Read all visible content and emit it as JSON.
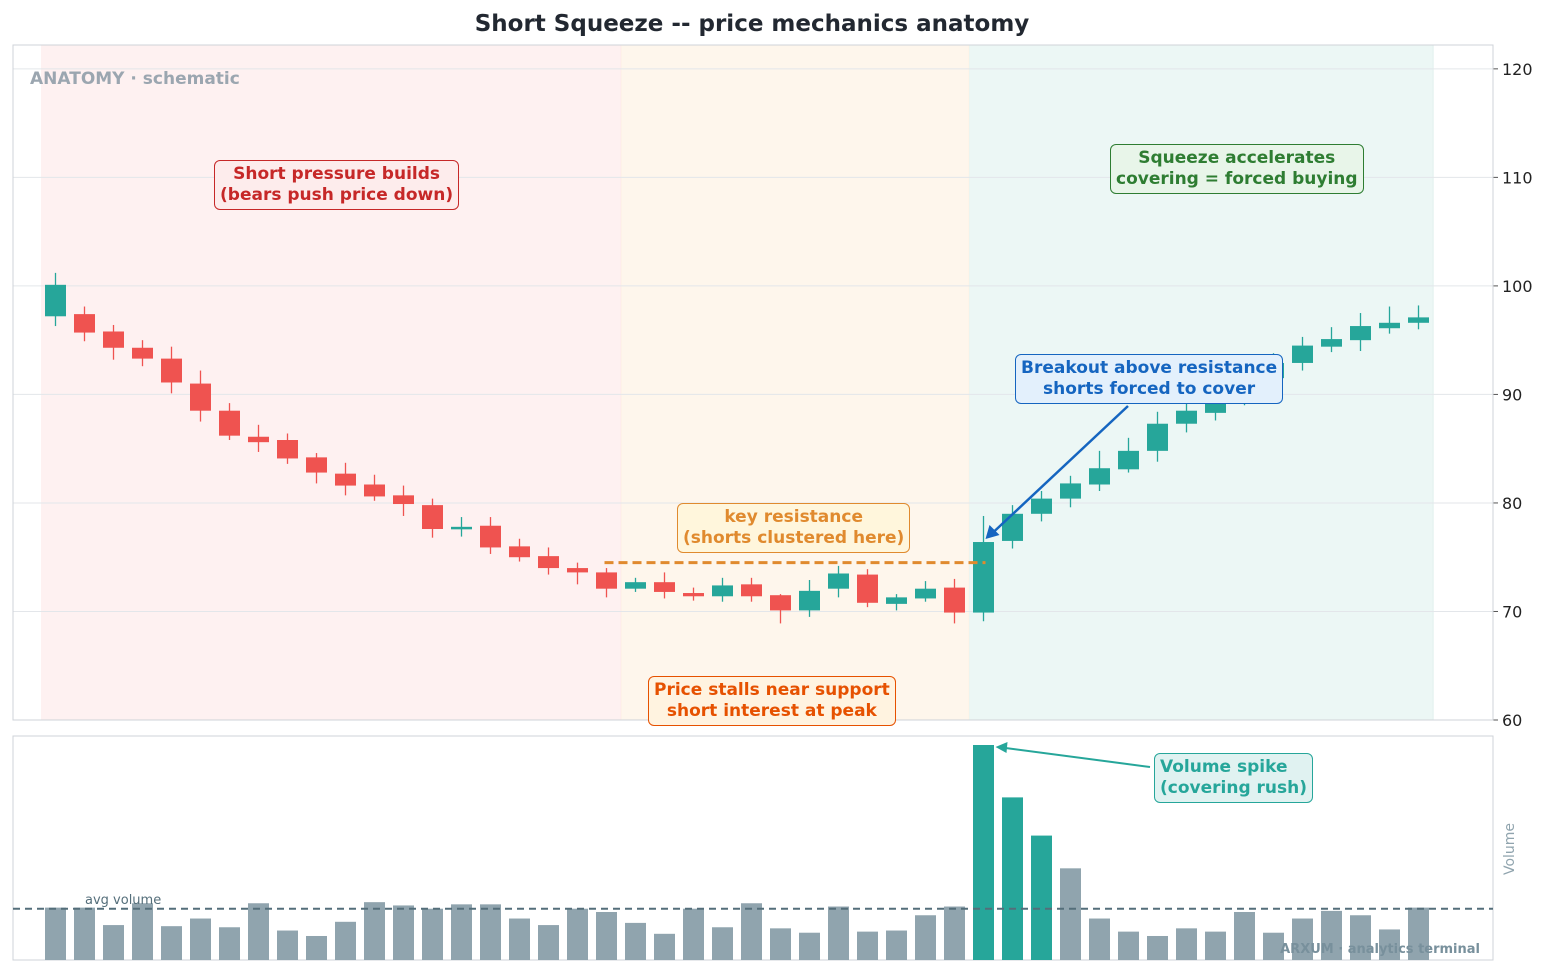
{
  "chart_data": [
    {
      "type": "candlestick",
      "title": "Short Squeeze -- price mechanics anatomy",
      "watermark_top": "ANATOMY · schematic",
      "y_axis": {
        "ylim": [
          60,
          121
        ],
        "ticks": [
          60,
          70,
          80,
          90,
          100,
          110,
          120
        ],
        "position": "right"
      },
      "grid": true,
      "phases": [
        {
          "name": "short-pressure",
          "start_index": 0,
          "end_index": 19,
          "color": "#fdecec"
        },
        {
          "name": "stall",
          "start_index": 20,
          "end_index": 31,
          "color": "#fdf3e6"
        },
        {
          "name": "squeeze",
          "start_index": 32,
          "end_index": 47,
          "color": "#e6f4f1"
        }
      ],
      "candles": [
        {
          "open": 97.2,
          "high": 101.2,
          "low": 96.3,
          "close": 100.1
        },
        {
          "open": 97.4,
          "high": 98.1,
          "low": 94.9,
          "close": 95.7
        },
        {
          "open": 95.8,
          "high": 96.4,
          "low": 93.2,
          "close": 94.3
        },
        {
          "open": 94.3,
          "high": 95.0,
          "low": 92.6,
          "close": 93.3
        },
        {
          "open": 93.3,
          "high": 94.4,
          "low": 90.1,
          "close": 91.1
        },
        {
          "open": 91.0,
          "high": 92.2,
          "low": 87.5,
          "close": 88.5
        },
        {
          "open": 88.5,
          "high": 89.2,
          "low": 85.8,
          "close": 86.2
        },
        {
          "open": 86.1,
          "high": 87.2,
          "low": 84.7,
          "close": 85.6
        },
        {
          "open": 85.8,
          "high": 86.4,
          "low": 83.6,
          "close": 84.1
        },
        {
          "open": 84.2,
          "high": 84.6,
          "low": 81.8,
          "close": 82.8
        },
        {
          "open": 82.7,
          "high": 83.7,
          "low": 80.7,
          "close": 81.6
        },
        {
          "open": 81.7,
          "high": 82.6,
          "low": 80.2,
          "close": 80.6
        },
        {
          "open": 80.7,
          "high": 81.6,
          "low": 78.8,
          "close": 79.9
        },
        {
          "open": 79.8,
          "high": 80.4,
          "low": 76.8,
          "close": 77.6
        },
        {
          "open": 77.6,
          "high": 78.7,
          "low": 76.9,
          "close": 77.8
        },
        {
          "open": 77.9,
          "high": 78.7,
          "low": 75.3,
          "close": 75.9
        },
        {
          "open": 76.0,
          "high": 76.7,
          "low": 74.6,
          "close": 75.0
        },
        {
          "open": 75.1,
          "high": 75.9,
          "low": 73.4,
          "close": 74.0
        },
        {
          "open": 74.0,
          "high": 74.5,
          "low": 72.5,
          "close": 73.6
        },
        {
          "open": 73.6,
          "high": 74.0,
          "low": 71.3,
          "close": 72.1
        },
        {
          "open": 72.1,
          "high": 73.1,
          "low": 71.8,
          "close": 72.7
        },
        {
          "open": 72.7,
          "high": 73.6,
          "low": 71.2,
          "close": 71.8
        },
        {
          "open": 71.7,
          "high": 72.2,
          "low": 71.0,
          "close": 71.4
        },
        {
          "open": 71.4,
          "high": 73.1,
          "low": 70.9,
          "close": 72.4
        },
        {
          "open": 72.5,
          "high": 73.1,
          "low": 70.9,
          "close": 71.4
        },
        {
          "open": 71.5,
          "high": 71.6,
          "low": 68.9,
          "close": 70.1
        },
        {
          "open": 70.1,
          "high": 72.9,
          "low": 69.5,
          "close": 71.9
        },
        {
          "open": 72.1,
          "high": 74.2,
          "low": 71.3,
          "close": 73.5
        },
        {
          "open": 73.4,
          "high": 73.9,
          "low": 70.4,
          "close": 70.8
        },
        {
          "open": 70.7,
          "high": 71.6,
          "low": 70.1,
          "close": 71.3
        },
        {
          "open": 71.2,
          "high": 72.8,
          "low": 70.9,
          "close": 72.1
        },
        {
          "open": 72.2,
          "high": 73.0,
          "low": 68.9,
          "close": 69.9
        },
        {
          "open": 69.9,
          "high": 78.8,
          "low": 69.1,
          "close": 76.4
        },
        {
          "open": 76.5,
          "high": 79.8,
          "low": 75.8,
          "close": 79.0
        },
        {
          "open": 79.0,
          "high": 81.1,
          "low": 78.3,
          "close": 80.4
        },
        {
          "open": 80.4,
          "high": 82.5,
          "low": 79.6,
          "close": 81.8
        },
        {
          "open": 81.7,
          "high": 84.8,
          "low": 81.1,
          "close": 83.2
        },
        {
          "open": 83.1,
          "high": 86.0,
          "low": 82.8,
          "close": 84.8
        },
        {
          "open": 84.8,
          "high": 88.4,
          "low": 83.8,
          "close": 87.3
        },
        {
          "open": 87.3,
          "high": 89.2,
          "low": 86.5,
          "close": 88.5
        },
        {
          "open": 88.3,
          "high": 90.4,
          "low": 87.6,
          "close": 89.9
        },
        {
          "open": 89.6,
          "high": 92.8,
          "low": 89.0,
          "close": 91.9
        },
        {
          "open": 91.5,
          "high": 93.8,
          "low": 91.0,
          "close": 92.9
        },
        {
          "open": 92.9,
          "high": 95.3,
          "low": 92.2,
          "close": 94.5
        },
        {
          "open": 94.4,
          "high": 96.2,
          "low": 93.9,
          "close": 95.1
        },
        {
          "open": 95.0,
          "high": 97.5,
          "low": 94.0,
          "close": 96.3
        },
        {
          "open": 96.1,
          "high": 98.1,
          "low": 95.6,
          "close": 96.6
        },
        {
          "open": 96.6,
          "high": 98.2,
          "low": 96.0,
          "close": 97.1
        }
      ],
      "resistance": {
        "value": 74.5,
        "start_index": 19,
        "end_index": 32,
        "color": "#e08a2e"
      },
      "colors": {
        "up": "#26a69a",
        "down": "#ef5350"
      },
      "annotations": [
        {
          "lines": [
            "Short pressure builds",
            "(bears push price down)"
          ],
          "color": "#c62828",
          "bg": "#fdecec"
        },
        {
          "lines": [
            "key resistance",
            "(shorts clustered here)"
          ],
          "color": "#e08a2e",
          "bg": "#fff6dc"
        },
        {
          "lines": [
            "Price stalls near support",
            "short interest at peak"
          ],
          "color": "#e65100",
          "bg": "#fff3e0"
        },
        {
          "lines": [
            "Breakout above resistance",
            "shorts forced to cover"
          ],
          "color": "#1565c0",
          "bg": "#e3f0fc"
        },
        {
          "lines": [
            "Squeeze accelerates",
            "covering = forced buying"
          ],
          "color": "#2e7d32",
          "bg": "#e8f5e9"
        }
      ]
    },
    {
      "type": "bar",
      "ylabel": "Volume",
      "avg_label": "avg volume",
      "avg_value": 47,
      "ylim": [
        0,
        197
      ],
      "values": [
        48,
        48,
        32,
        52,
        31,
        38,
        30,
        52,
        27,
        22,
        35,
        53,
        50,
        47,
        51,
        51,
        38,
        32,
        47,
        44,
        34,
        24,
        47,
        30,
        52,
        29,
        25,
        49,
        26,
        27,
        41,
        49,
        197,
        149,
        114,
        84,
        38,
        26,
        22,
        29,
        26,
        44,
        25,
        38,
        45,
        41,
        28,
        48
      ],
      "highlight_indices": [
        32,
        33,
        34
      ],
      "colors": {
        "normal": "#90a4ae",
        "highlight": "#26a69a",
        "avg_line": "#546e7a"
      },
      "annotation": {
        "lines": [
          "Volume spike",
          "(covering rush)"
        ],
        "color": "#26a69a",
        "bg": "#e0f2f1"
      },
      "watermark": "ARXUM · analytics terminal"
    }
  ]
}
